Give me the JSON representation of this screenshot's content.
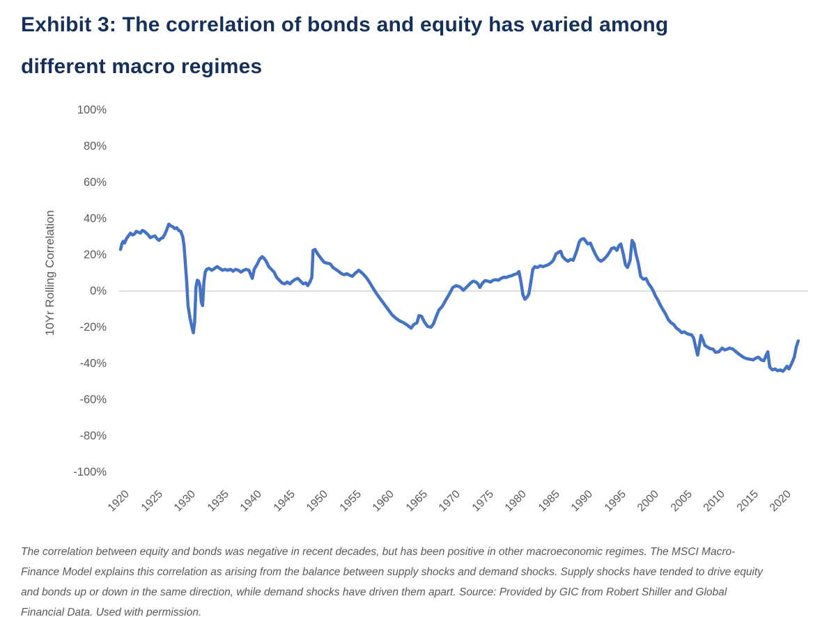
{
  "title": {
    "line1": "Exhibit 3: The correlation of bonds and equity has varied among",
    "line2": "different macro regimes"
  },
  "colors": {
    "title_navy": "#16305c",
    "line_blue": "#4472c4",
    "axis_gray": "#595959",
    "grid_gray": "#c9c9c9",
    "background": "#ffffff"
  },
  "chart_data": {
    "type": "line",
    "title": "Exhibit 3: The correlation of bonds and equity has varied among different macro regimes",
    "xlabel": "",
    "ylabel": "10Yr Rolling Correlation",
    "xlim": [
      1919.5,
      2023.5
    ],
    "ylim": [
      -100,
      100
    ],
    "grid": "zero-line-only",
    "legend": "none",
    "y_ticks": [
      "100%",
      "80%",
      "60%",
      "40%",
      "20%",
      "0%",
      "-20%",
      "-40%",
      "-60%",
      "-80%",
      "-100%"
    ],
    "y_tick_values": [
      100,
      80,
      60,
      40,
      20,
      0,
      -20,
      -40,
      -60,
      -80,
      -100
    ],
    "x_ticks": [
      "1920",
      "1925",
      "1930",
      "1935",
      "1940",
      "1945",
      "1950",
      "1955",
      "1960",
      "1965",
      "1970",
      "1975",
      "1980",
      "1985",
      "1990",
      "1995",
      "2000",
      "2005",
      "2010",
      "2015",
      "2020"
    ],
    "x_tick_values": [
      1920,
      1925,
      1930,
      1935,
      1940,
      1945,
      1950,
      1955,
      1960,
      1965,
      1970,
      1975,
      1980,
      1985,
      1990,
      1995,
      2000,
      2005,
      2010,
      2015,
      2020
    ],
    "series": [
      {
        "name": "10Yr Rolling Correlation of bonds and equity (%)",
        "color": "#4472c4",
        "points": [
          [
            1920.0,
            23
          ],
          [
            1920.2,
            26
          ],
          [
            1920.4,
            27.5
          ],
          [
            1920.6,
            26.5
          ],
          [
            1920.9,
            29
          ],
          [
            1921.2,
            30.5
          ],
          [
            1921.5,
            32
          ],
          [
            1921.8,
            31
          ],
          [
            1922.1,
            31.5
          ],
          [
            1922.4,
            33
          ],
          [
            1922.7,
            32.5
          ],
          [
            1923.0,
            32
          ],
          [
            1923.3,
            33.5
          ],
          [
            1923.6,
            33
          ],
          [
            1923.9,
            32
          ],
          [
            1924.2,
            31
          ],
          [
            1924.5,
            29.5
          ],
          [
            1924.8,
            30
          ],
          [
            1925.2,
            30.5
          ],
          [
            1925.5,
            29
          ],
          [
            1925.8,
            28
          ],
          [
            1926.1,
            29
          ],
          [
            1926.4,
            29.5
          ],
          [
            1926.7,
            31.5
          ],
          [
            1927.0,
            34
          ],
          [
            1927.3,
            37
          ],
          [
            1927.6,
            36
          ],
          [
            1927.9,
            35.5
          ],
          [
            1928.2,
            34.5
          ],
          [
            1928.5,
            35
          ],
          [
            1928.8,
            33.5
          ],
          [
            1929.1,
            33
          ],
          [
            1929.4,
            30
          ],
          [
            1929.6,
            25
          ],
          [
            1929.8,
            15
          ],
          [
            1930.0,
            5
          ],
          [
            1930.2,
            -8
          ],
          [
            1930.5,
            -15
          ],
          [
            1930.8,
            -20
          ],
          [
            1931.0,
            -23
          ],
          [
            1931.2,
            -17
          ],
          [
            1931.4,
            2
          ],
          [
            1931.6,
            6
          ],
          [
            1931.8,
            5.5
          ],
          [
            1932.0,
            3
          ],
          [
            1932.2,
            -6
          ],
          [
            1932.4,
            -8
          ],
          [
            1932.6,
            5
          ],
          [
            1932.8,
            10.5
          ],
          [
            1933.0,
            12
          ],
          [
            1933.4,
            12.5
          ],
          [
            1933.8,
            11.5
          ],
          [
            1934.2,
            12.5
          ],
          [
            1934.6,
            13.5
          ],
          [
            1935.0,
            12.5
          ],
          [
            1935.4,
            11.5
          ],
          [
            1935.8,
            12
          ],
          [
            1936.2,
            11.5
          ],
          [
            1936.6,
            12
          ],
          [
            1937.0,
            11
          ],
          [
            1937.4,
            12
          ],
          [
            1937.8,
            11.5
          ],
          [
            1938.2,
            10.5
          ],
          [
            1938.6,
            11.5
          ],
          [
            1939.0,
            12
          ],
          [
            1939.4,
            11.5
          ],
          [
            1939.9,
            7
          ],
          [
            1940.2,
            12
          ],
          [
            1940.6,
            14.5
          ],
          [
            1941.0,
            17.5
          ],
          [
            1941.4,
            19
          ],
          [
            1941.7,
            18
          ],
          [
            1942.0,
            16.5
          ],
          [
            1942.4,
            13.5
          ],
          [
            1942.8,
            12
          ],
          [
            1943.2,
            10.5
          ],
          [
            1943.6,
            7.5
          ],
          [
            1944.0,
            6
          ],
          [
            1944.4,
            4.5
          ],
          [
            1944.8,
            4
          ],
          [
            1945.2,
            5
          ],
          [
            1945.6,
            4
          ],
          [
            1946.0,
            5.5
          ],
          [
            1946.4,
            6.5
          ],
          [
            1946.8,
            7
          ],
          [
            1947.2,
            5.5
          ],
          [
            1947.6,
            4
          ],
          [
            1948.0,
            4.5
          ],
          [
            1948.3,
            3
          ],
          [
            1948.6,
            5
          ],
          [
            1948.9,
            7.5
          ],
          [
            1949.1,
            22.5
          ],
          [
            1949.4,
            23
          ],
          [
            1949.7,
            21
          ],
          [
            1950.0,
            19.5
          ],
          [
            1950.4,
            17.5
          ],
          [
            1950.8,
            15.8
          ],
          [
            1951.3,
            15.4
          ],
          [
            1951.7,
            15
          ],
          [
            1952.1,
            13
          ],
          [
            1952.5,
            12
          ],
          [
            1952.9,
            11
          ],
          [
            1953.4,
            9.6
          ],
          [
            1953.8,
            9
          ],
          [
            1954.2,
            9.6
          ],
          [
            1954.6,
            8.8
          ],
          [
            1955.0,
            8.1
          ],
          [
            1955.5,
            10
          ],
          [
            1956.0,
            11.5
          ],
          [
            1956.5,
            10
          ],
          [
            1957.1,
            7.7
          ],
          [
            1957.6,
            5
          ],
          [
            1958.1,
            2
          ],
          [
            1958.6,
            -1
          ],
          [
            1959.2,
            -4
          ],
          [
            1959.8,
            -7
          ],
          [
            1960.4,
            -10
          ],
          [
            1961.0,
            -13
          ],
          [
            1961.6,
            -15
          ],
          [
            1962.2,
            -16.5
          ],
          [
            1962.8,
            -17.5
          ],
          [
            1963.4,
            -19
          ],
          [
            1963.9,
            -20.5
          ],
          [
            1964.3,
            -18.5
          ],
          [
            1964.8,
            -17.5
          ],
          [
            1965.1,
            -13.5
          ],
          [
            1965.5,
            -14
          ],
          [
            1965.9,
            -17
          ],
          [
            1966.4,
            -19.5
          ],
          [
            1966.9,
            -20
          ],
          [
            1967.3,
            -18
          ],
          [
            1967.7,
            -14
          ],
          [
            1968.1,
            -10.5
          ],
          [
            1968.6,
            -8.5
          ],
          [
            1969.2,
            -4.6
          ],
          [
            1969.7,
            -1.5
          ],
          [
            1970.2,
            2
          ],
          [
            1970.7,
            3
          ],
          [
            1971.3,
            2.3
          ],
          [
            1971.8,
            0.5
          ],
          [
            1972.1,
            1.5
          ],
          [
            1972.5,
            3
          ],
          [
            1972.9,
            4.5
          ],
          [
            1973.3,
            5.5
          ],
          [
            1973.7,
            5
          ],
          [
            1974.0,
            4
          ],
          [
            1974.3,
            2
          ],
          [
            1974.7,
            4.5
          ],
          [
            1975.1,
            5.8
          ],
          [
            1975.5,
            5.5
          ],
          [
            1975.9,
            5
          ],
          [
            1976.3,
            6
          ],
          [
            1976.7,
            6.3
          ],
          [
            1977.1,
            6
          ],
          [
            1977.5,
            7
          ],
          [
            1977.9,
            7.7
          ],
          [
            1978.3,
            7.5
          ],
          [
            1978.7,
            8.2
          ],
          [
            1979.1,
            8.5
          ],
          [
            1979.5,
            9.2
          ],
          [
            1979.9,
            9.6
          ],
          [
            1980.2,
            10.8
          ],
          [
            1980.5,
            5
          ],
          [
            1980.8,
            -2
          ],
          [
            1981.1,
            -4.5
          ],
          [
            1981.4,
            -3.5
          ],
          [
            1981.7,
            -1.5
          ],
          [
            1982.0,
            5
          ],
          [
            1982.3,
            12
          ],
          [
            1982.6,
            13.5
          ],
          [
            1983.0,
            13
          ],
          [
            1983.4,
            14
          ],
          [
            1983.8,
            13.5
          ],
          [
            1984.2,
            14
          ],
          [
            1984.6,
            14.5
          ],
          [
            1985.0,
            15.5
          ],
          [
            1985.4,
            17
          ],
          [
            1985.8,
            20.5
          ],
          [
            1986.2,
            21.5
          ],
          [
            1986.5,
            22
          ],
          [
            1986.8,
            19
          ],
          [
            1987.2,
            17.5
          ],
          [
            1987.6,
            16.5
          ],
          [
            1988.0,
            17.5
          ],
          [
            1988.4,
            17
          ],
          [
            1988.7,
            20
          ],
          [
            1989.0,
            23
          ],
          [
            1989.3,
            27
          ],
          [
            1989.6,
            28.5
          ],
          [
            1990.0,
            29
          ],
          [
            1990.3,
            27.5
          ],
          [
            1990.6,
            26
          ],
          [
            1991.0,
            26.5
          ],
          [
            1991.4,
            23
          ],
          [
            1991.8,
            20
          ],
          [
            1992.2,
            17.5
          ],
          [
            1992.6,
            16.5
          ],
          [
            1993.0,
            17.5
          ],
          [
            1993.4,
            19
          ],
          [
            1993.8,
            21
          ],
          [
            1994.2,
            23.5
          ],
          [
            1994.6,
            24
          ],
          [
            1995.0,
            22.5
          ],
          [
            1995.3,
            25
          ],
          [
            1995.6,
            26
          ],
          [
            1996.0,
            20
          ],
          [
            1996.3,
            14.5
          ],
          [
            1996.6,
            13
          ],
          [
            1997.0,
            17
          ],
          [
            1997.3,
            28
          ],
          [
            1997.6,
            26
          ],
          [
            1997.9,
            20
          ],
          [
            1998.2,
            16
          ],
          [
            1998.6,
            8
          ],
          [
            1999.0,
            6.5
          ],
          [
            1999.4,
            7
          ],
          [
            1999.8,
            4
          ],
          [
            2000.2,
            2
          ],
          [
            2000.5,
            0
          ],
          [
            2000.8,
            -2.5
          ],
          [
            2001.2,
            -5
          ],
          [
            2001.6,
            -8
          ],
          [
            2002.0,
            -10.5
          ],
          [
            2002.4,
            -13
          ],
          [
            2002.8,
            -16
          ],
          [
            2003.2,
            -17.5
          ],
          [
            2003.6,
            -18.5
          ],
          [
            2004.0,
            -20.5
          ],
          [
            2004.4,
            -21.5
          ],
          [
            2004.8,
            -23
          ],
          [
            2005.2,
            -22.5
          ],
          [
            2005.6,
            -23.5
          ],
          [
            2006.0,
            -24
          ],
          [
            2006.3,
            -24.2
          ],
          [
            2006.6,
            -26
          ],
          [
            2006.9,
            -31
          ],
          [
            2007.2,
            -35.4
          ],
          [
            2007.5,
            -29
          ],
          [
            2007.7,
            -24.5
          ],
          [
            2008.0,
            -27
          ],
          [
            2008.3,
            -30
          ],
          [
            2008.7,
            -31
          ],
          [
            2009.1,
            -31.8
          ],
          [
            2009.5,
            -32
          ],
          [
            2009.9,
            -33.8
          ],
          [
            2010.4,
            -33.5
          ],
          [
            2010.9,
            -31.5
          ],
          [
            2011.3,
            -32.5
          ],
          [
            2011.7,
            -32
          ],
          [
            2012.0,
            -31.5
          ],
          [
            2012.5,
            -32
          ],
          [
            2013.0,
            -33.5
          ],
          [
            2013.5,
            -35
          ],
          [
            2014.1,
            -36.5
          ],
          [
            2014.6,
            -37.3
          ],
          [
            2015.2,
            -37.7
          ],
          [
            2015.6,
            -38
          ],
          [
            2016.0,
            -37
          ],
          [
            2016.4,
            -36.5
          ],
          [
            2016.8,
            -38
          ],
          [
            2017.2,
            -38.5
          ],
          [
            2017.5,
            -35.8
          ],
          [
            2017.8,
            -33.5
          ],
          [
            2018.1,
            -42
          ],
          [
            2018.5,
            -43.5
          ],
          [
            2018.9,
            -43
          ],
          [
            2019.3,
            -44
          ],
          [
            2019.7,
            -43.5
          ],
          [
            2020.1,
            -44.3
          ],
          [
            2020.4,
            -43
          ],
          [
            2020.7,
            -41.5
          ],
          [
            2021.0,
            -43
          ],
          [
            2021.4,
            -40
          ],
          [
            2021.8,
            -36.5
          ],
          [
            2022.1,
            -31
          ],
          [
            2022.4,
            -27.5
          ]
        ]
      }
    ]
  },
  "caption": {
    "lines": [
      "The correlation between equity and bonds was negative in recent decades, but has been positive in other macroeconomic regimes. The MSCI Macro-",
      "Finance Model explains this correlation as arising from the balance between supply shocks and demand shocks. Supply shocks have tended to drive equity",
      "and bonds up or down in the same direction, while demand shocks have driven them apart. Source: Provided by GIC from Robert Shiller and Global",
      "Financial Data. Used with permission."
    ]
  }
}
